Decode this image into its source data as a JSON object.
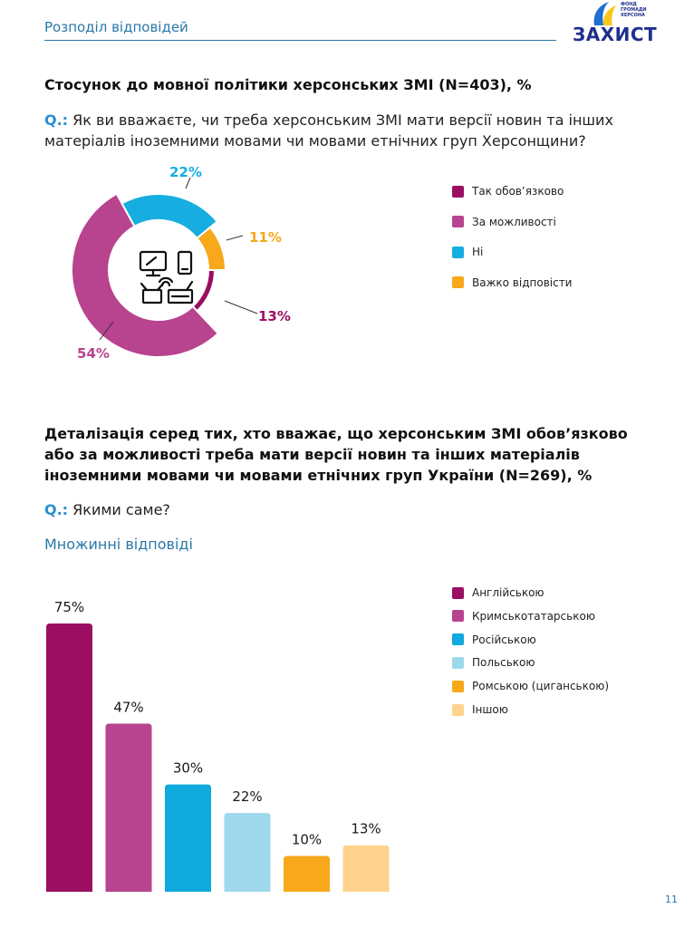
{
  "header": {
    "section": "Розподіл відповідей",
    "logo_text": "ЗАХИСТ",
    "logo_sub": "ФОНД ГРОМАДИ ХЕРСОНА"
  },
  "section1": {
    "title": "Стосунок до мовної політики херсонських ЗМІ (N=403), %",
    "question_label": "Q.:",
    "question_text": " Як ви вважаєте, чи треба херсонським ЗМІ мати версії новин та інших матеріалів іноземними мовами чи мовами етнічних груп Херсонщини?"
  },
  "section2": {
    "title": "Деталізація серед тих, хто вважає, що херсонським ЗМІ обов’язково або за можливості треба мати версії новин та інших матеріалів іноземними мовами чи мовами етнічних груп України  (N=269), %",
    "question_label": "Q.:",
    "question_text": " Якими саме?",
    "note": "Множинні відповіді"
  },
  "chart_data": [
    {
      "type": "pie",
      "categories": [
        "Так обов’язково",
        "За можливості",
        "Ні",
        "Важко відповісти"
      ],
      "values": [
        13,
        54,
        22,
        11
      ],
      "value_labels": [
        "13%",
        "54%",
        "22%",
        "11%"
      ],
      "colors": [
        "#9b0f62",
        "#b8438e",
        "#16aee0",
        "#f7a81b"
      ],
      "legend": "right"
    },
    {
      "type": "bar",
      "categories": [
        "Англійською",
        "Кримськотатарською",
        "Російською",
        "Польською",
        "Ромською (циганською)",
        "Іншою"
      ],
      "values": [
        75,
        47,
        30,
        22,
        10,
        13
      ],
      "value_labels": [
        "75%",
        "47%",
        "30%",
        "22%",
        "10%",
        "13%"
      ],
      "colors": [
        "#9b0f62",
        "#b8438e",
        "#0fa9dd",
        "#9fd8ec",
        "#f7a81b",
        "#fdd38d"
      ],
      "ylim": [
        0,
        75
      ],
      "legend": "right"
    }
  ],
  "page_number": "11"
}
